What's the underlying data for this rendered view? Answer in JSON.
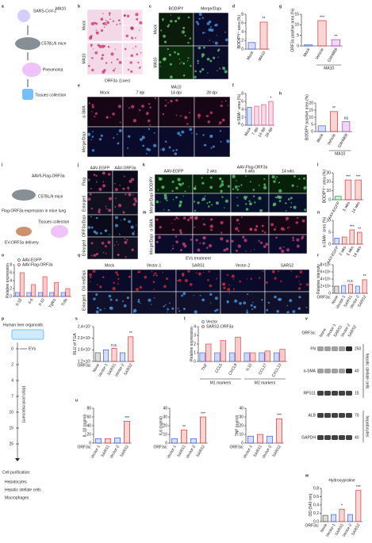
{
  "panel_letters": [
    "a",
    "b",
    "c",
    "d",
    "e",
    "f",
    "g",
    "h",
    "i",
    "j",
    "k",
    "l",
    "m",
    "n",
    "o",
    "p",
    "q",
    "r",
    "s",
    "t",
    "u",
    "v",
    "w"
  ],
  "a": {
    "virus": "SARS-CoV-2",
    "strain": "MA10",
    "mice": "C57BL/6 mice",
    "disease": "Pneumonia",
    "collection": "Tissues collection"
  },
  "b": {
    "rows": [
      "Mock",
      "MA10"
    ],
    "caption": "ORF3a",
    "organ": "(Liver)"
  },
  "c": {
    "cols": [
      "BODIPY",
      "Merge/Dapi"
    ],
    "rows": [
      "Mock",
      "MA10"
    ]
  },
  "e": {
    "group": "MA10",
    "cols": [
      "Mock",
      "7 dpi",
      "14 dpi",
      "28 dpi"
    ],
    "rows": [
      "α-SMA",
      "Merge/Dapi"
    ]
  },
  "i": {
    "vector": "AAV5-Flag-ORF3a",
    "mice": "C57BL/6 mice",
    "expression": "Flag-ORF3a expression in mice lung",
    "collection": "Tissues collection",
    "delivery": "EV-ORF3a delivery"
  },
  "j": {
    "cols": [
      "AAV-EGFP",
      "AAV-ORF3a"
    ],
    "rows": [
      "Flag",
      "Enlarged",
      "ORF3a/Dapi",
      "Enlarged"
    ]
  },
  "k": {
    "group": "AAV-Flag-ORF3a",
    "cols": [
      "AAV-EGFP",
      "2 wks",
      "5 wks",
      "14 wks"
    ],
    "rows": [
      "BODIPY",
      "Merge/Dapi"
    ]
  },
  "m": {
    "rows": [
      "α-SMA",
      "Merge/Dapi"
    ]
  },
  "q": {
    "group": "EVs treatment",
    "cols": [
      "Mock",
      "Vector-1",
      "SARS1",
      "Vector-2",
      "SARS2"
    ],
    "rows": [
      "Oil red/Dapi",
      "Enlarged"
    ]
  },
  "p": {
    "title": "Human liver organoids",
    "evs": "EVs",
    "days": [
      0,
      2,
      4,
      7,
      10,
      15,
      25
    ],
    "axis": "(days post exposure)",
    "purification": "Cell purification:",
    "cells": [
      "Hepatocytes",
      "Hepatic stellate cells",
      "Macrophages"
    ]
  },
  "v": {
    "prefix": "ORF3a:",
    "lanes": [
      "None",
      "Vector-1",
      "SARS1",
      "Vector-2",
      "SARS2"
    ],
    "bands": [
      "FN",
      "α-SMA",
      "RPS11",
      "ALB",
      "GAPDH"
    ],
    "kda": [
      250,
      40,
      15,
      70,
      40
    ],
    "groups": [
      "hepatic stellate cells",
      "hepatocytes"
    ]
  },
  "chart_data": [
    {
      "type": "bar",
      "ylabel": "BODIPY⁺ area (%)",
      "categories": [
        "Mock",
        "MA10"
      ],
      "colors": [
        "#3b5bdb",
        "#e03131"
      ],
      "values": [
        1.5,
        6.2
      ],
      "ylim": [
        0,
        8
      ],
      "yticks": [
        0,
        2,
        4,
        6,
        8
      ],
      "annotations": [
        null,
        "**"
      ]
    },
    {
      "type": "bar",
      "ylabel": "α-SMA⁺ area (%)",
      "categories": [
        "Mock",
        "7 dpi",
        "14 dpi",
        "28 dpi"
      ],
      "colors": [
        "#3b5bdb",
        "#e64980",
        "#e64980",
        "#e64980"
      ],
      "values": [
        4.5,
        4.8,
        5.2,
        6
      ],
      "ylim": [
        0,
        8
      ],
      "yticks": [
        0,
        2,
        4,
        6,
        8
      ],
      "annotations": [
        null,
        null,
        null,
        "*"
      ]
    },
    {
      "type": "bar",
      "ylabel": "ORF3a positive area (%)",
      "categories": [
        "Mock",
        "Vehicle",
        "GW4869"
      ],
      "colors": [
        "#3b5bdb",
        "#e03131",
        "#ae3ec9"
      ],
      "values": [
        0.5,
        12,
        3
      ],
      "ylim": [
        0,
        15
      ],
      "yticks": [
        0,
        5,
        10,
        15
      ],
      "annotations": [
        null,
        "***",
        "**"
      ],
      "group": "MA10"
    },
    {
      "type": "bar",
      "ylabel": "BODIPY positive area (%)",
      "categories": [
        "Mock",
        "Vehicle",
        "GW4869"
      ],
      "colors": [
        "#3b5bdb",
        "#e03131",
        "#ae3ec9"
      ],
      "values": [
        4,
        14,
        7
      ],
      "ylim": [
        0,
        20
      ],
      "yticks": [
        0,
        5,
        10,
        15,
        20
      ],
      "annotations": [
        null,
        "**",
        "ns"
      ],
      "group": "MA10"
    },
    {
      "type": "bar",
      "ylabel": "BODIPY⁺ area (%)",
      "categories": [
        "AAV-EGFP",
        "5 wks",
        "14 wks"
      ],
      "colors": [
        "#2f9e44",
        "#e03131",
        "#e03131"
      ],
      "values": [
        4,
        22,
        22
      ],
      "ylim": [
        0,
        30
      ],
      "yticks": [
        0,
        10,
        20,
        30
      ],
      "annotations": [
        null,
        "***",
        "***"
      ]
    },
    {
      "type": "bar",
      "ylabel": "α-SMA⁺ area (%)",
      "categories": [
        "AAV-EGFP",
        "2 wks",
        "5 wks",
        "14 wks"
      ],
      "colors": [
        "#3b5bdb",
        "#e03131",
        "#e03131",
        "#e03131"
      ],
      "values": [
        2.5,
        3,
        6,
        5
      ],
      "ylim": [
        0,
        10
      ],
      "yticks": [
        0,
        5,
        10
      ],
      "annotations": [
        null,
        null,
        "***",
        "**"
      ]
    },
    {
      "type": "grouped_bar",
      "ylabel": "Relative expression",
      "categories": [
        "Il-1β",
        "Il-6",
        "Il-10",
        "Tgfb1",
        "Tnfa"
      ],
      "series": [
        {
          "name": "AAV-EGFP",
          "color": "#3b5bdb",
          "values": [
            1,
            1,
            1,
            1,
            1
          ]
        },
        {
          "name": "AAV-Flag-ORF3a",
          "color": "#e03131",
          "values": [
            6,
            3,
            5,
            3.5,
            2
          ]
        }
      ],
      "ylim": [
        0,
        8
      ],
      "yticks": [
        0,
        2,
        4,
        6,
        8
      ]
    },
    {
      "type": "bar",
      "ylabel": "Relative intensity",
      "xprefix": "ORF3a:",
      "categories": [
        "None",
        "Vector-1",
        "SARS1",
        "Vector-2",
        "SARS2"
      ],
      "colors": [
        "#555555",
        "#3b5bdb",
        "#e03131",
        "#3b5bdb",
        "#e03131"
      ],
      "values": [
        2000000,
        2200000,
        2500000,
        2000000,
        3800000
      ],
      "ylim": [
        0,
        8000000
      ],
      "yticks": [
        0,
        {
          "value": 2000000,
          "label": "2×10⁶"
        },
        {
          "value": 4000000,
          "label": "4×10⁶"
        },
        {
          "value": 6000000,
          "label": "6×10⁶"
        },
        {
          "value": 8000000,
          "label": "8×10⁶"
        }
      ],
      "annotations": [
        null,
        null,
        "n.s.",
        null,
        "**"
      ]
    },
    {
      "type": "bar",
      "ylabel": "RLU of TGA",
      "xprefix": "ORF3a:",
      "categories": [
        "None",
        "Vector-1",
        "SARS1",
        "Vector-2",
        "SARS2"
      ],
      "colors": [
        "#555555",
        "#3b5bdb",
        "#e03131",
        "#3b5bdb",
        "#e03131"
      ],
      "values": [
        15000000,
        16000000,
        16500000,
        15000000,
        20500000
      ],
      "ylim": [
        12000000,
        24000000
      ],
      "yticks": [
        {
          "value": 12000000,
          "label": "1.2×10⁷"
        },
        {
          "value": 16000000,
          "label": "1.6×10⁷"
        },
        {
          "value": 20000000,
          "label": "2.0×10⁷"
        },
        {
          "value": 24000000,
          "label": "2.4×10⁷"
        }
      ],
      "annotations": [
        null,
        null,
        "n.s.",
        null,
        "**"
      ]
    },
    {
      "type": "grouped_bar",
      "ylabel": "Relative expression",
      "categories": [
        "TNF",
        "CCL5",
        "CXCL9",
        "IL10",
        "CCL17",
        "CXCL13"
      ],
      "series": [
        {
          "name": "Vector",
          "color": "#3b5bdb",
          "values": [
            1,
            1,
            1,
            1,
            1,
            1
          ]
        },
        {
          "name": "SARS2-ORF3a",
          "color": "#e03131",
          "values": [
            2,
            2.4,
            2.8,
            1,
            1.2,
            1.4
          ]
        }
      ],
      "ylim": [
        0,
        4
      ],
      "yticks": [
        0,
        1,
        2,
        3,
        4
      ],
      "groups": [
        "M1 markers",
        "M2 markers"
      ]
    },
    {
      "type": "bar",
      "ylabel": "IL-1β (pg/ml)",
      "xprefix": "ORF3a:",
      "categories": [
        "Vector-1",
        "SARS1",
        "Vector-2",
        "SARS2"
      ],
      "colors": [
        "#3b5bdb",
        "#e03131",
        "#3b5bdb",
        "#e03131"
      ],
      "values": [
        10,
        10,
        12,
        50
      ],
      "ylim": [
        0,
        80
      ],
      "yticks": [
        0,
        20,
        40,
        60,
        80
      ],
      "annotations": [
        null,
        null,
        null,
        "***"
      ]
    },
    {
      "type": "bar",
      "ylabel": "IL6 (pg/ml)",
      "xprefix": "ORF3a:",
      "categories": [
        "Vector-1",
        "SARS1",
        "Vector-2",
        "SARS2"
      ],
      "colors": [
        "#3b5bdb",
        "#e03131",
        "#3b5bdb",
        "#e03131"
      ],
      "values": [
        5,
        15,
        5,
        30
      ],
      "ylim": [
        0,
        40
      ],
      "yticks": [
        0,
        10,
        20,
        30,
        40
      ],
      "annotations": [
        null,
        "**",
        null,
        "***"
      ]
    },
    {
      "type": "bar",
      "ylabel": "TNF (pg/ml)",
      "xprefix": "ORF3a:",
      "categories": [
        "Vector-1",
        "SARS1",
        "Vector-2",
        "SARS2"
      ],
      "colors": [
        "#3b5bdb",
        "#e03131",
        "#3b5bdb",
        "#e03131"
      ],
      "values": [
        8,
        10,
        8,
        28
      ],
      "ylim": [
        0,
        40
      ],
      "yticks": [
        0,
        10,
        20,
        30,
        40
      ],
      "annotations": [
        null,
        null,
        null,
        "***"
      ]
    },
    {
      "type": "bar",
      "title": "Hydroxyproline",
      "ylabel": "OD (540 nm)",
      "xprefix": "ORF3a:",
      "categories": [
        "None",
        "Vector-1",
        "SARS1",
        "Vector-2",
        "SARS2"
      ],
      "colors": [
        "#555555",
        "#3b5bdb",
        "#e03131",
        "#3b5bdb",
        "#e03131"
      ],
      "values": [
        0.15,
        0.17,
        0.3,
        0.17,
        0.75
      ],
      "ylim": [
        0,
        0.8
      ],
      "yticks": [
        {
          "value": 0,
          "label": "0.0"
        },
        0.2,
        0.4,
        0.6,
        0.8
      ],
      "annotations": [
        null,
        null,
        "*",
        null,
        "***"
      ]
    }
  ]
}
